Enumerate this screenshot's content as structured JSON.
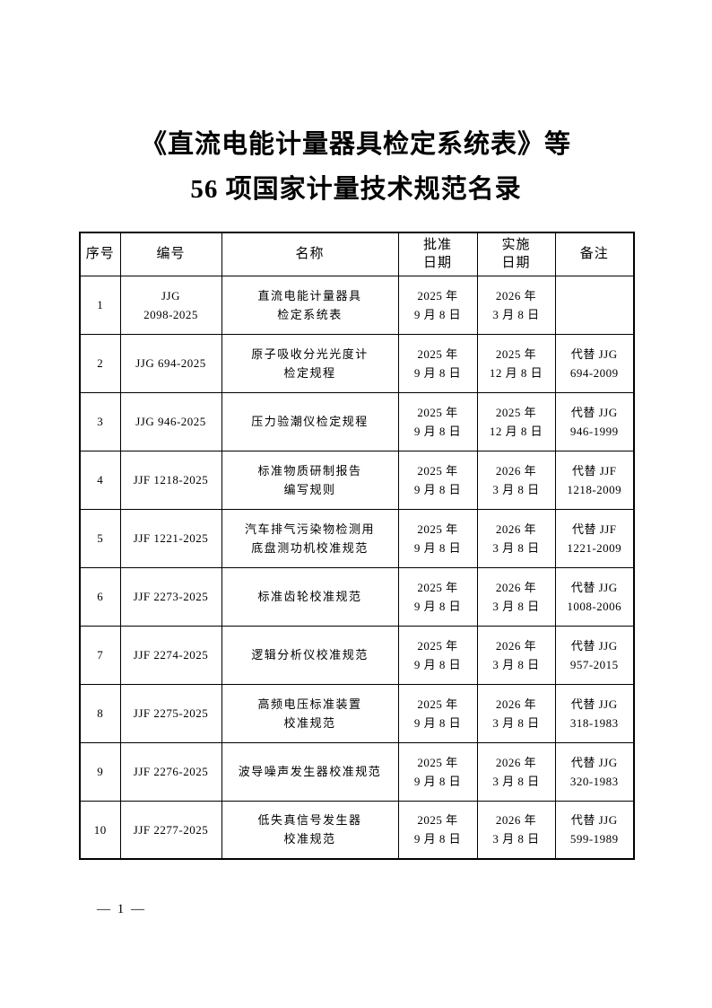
{
  "title": {
    "line1": "《直流电能计量器具检定系统表》等",
    "line2": "56 项国家计量技术规范名录"
  },
  "table": {
    "headers": [
      "序号",
      "编号",
      "名称",
      "批准\n日期",
      "实施\n日期",
      "备注"
    ],
    "rows": [
      {
        "no": "1",
        "code": "JJG\n2098-2025",
        "name": "直流电能计量器具\n检定系统表",
        "approve": "2025 年\n9 月 8 日",
        "impl": "2026 年\n3 月 8 日",
        "note": ""
      },
      {
        "no": "2",
        "code": "JJG 694-2025",
        "name": "原子吸收分光光度计\n检定规程",
        "approve": "2025 年\n9 月 8 日",
        "impl": "2025 年\n12 月 8 日",
        "note": "代替 JJG\n694-2009"
      },
      {
        "no": "3",
        "code": "JJG 946-2025",
        "name": "压力验潮仪检定规程",
        "approve": "2025 年\n9 月 8 日",
        "impl": "2025 年\n12 月 8 日",
        "note": "代替 JJG\n946-1999"
      },
      {
        "no": "4",
        "code": "JJF 1218-2025",
        "name": "标准物质研制报告\n编写规则",
        "approve": "2025 年\n9 月 8 日",
        "impl": "2026 年\n3 月 8 日",
        "note": "代替 JJF\n1218-2009"
      },
      {
        "no": "5",
        "code": "JJF 1221-2025",
        "name": "汽车排气污染物检测用\n底盘测功机校准规范",
        "approve": "2025 年\n9 月 8 日",
        "impl": "2026 年\n3 月 8 日",
        "note": "代替 JJF\n1221-2009"
      },
      {
        "no": "6",
        "code": "JJF 2273-2025",
        "name": "标准齿轮校准规范",
        "approve": "2025 年\n9 月 8 日",
        "impl": "2026 年\n3 月 8 日",
        "note": "代替 JJG\n1008-2006"
      },
      {
        "no": "7",
        "code": "JJF 2274-2025",
        "name": "逻辑分析仪校准规范",
        "approve": "2025 年\n9 月 8 日",
        "impl": "2026 年\n3 月 8 日",
        "note": "代替 JJG\n957-2015"
      },
      {
        "no": "8",
        "code": "JJF 2275-2025",
        "name": "高频电压标准装置\n校准规范",
        "approve": "2025 年\n9 月 8 日",
        "impl": "2026 年\n3 月 8 日",
        "note": "代替 JJG\n318-1983"
      },
      {
        "no": "9",
        "code": "JJF 2276-2025",
        "name": "波导噪声发生器校准规范",
        "approve": "2025 年\n9 月 8 日",
        "impl": "2026 年\n3 月 8 日",
        "note": "代替 JJG\n320-1983"
      },
      {
        "no": "10",
        "code": "JJF 2277-2025",
        "name": "低失真信号发生器\n校准规范",
        "approve": "2025 年\n9 月 8 日",
        "impl": "2026 年\n3 月 8 日",
        "note": "代替 JJG\n599-1989"
      }
    ]
  },
  "footer": {
    "page_number": "— 1 —"
  }
}
